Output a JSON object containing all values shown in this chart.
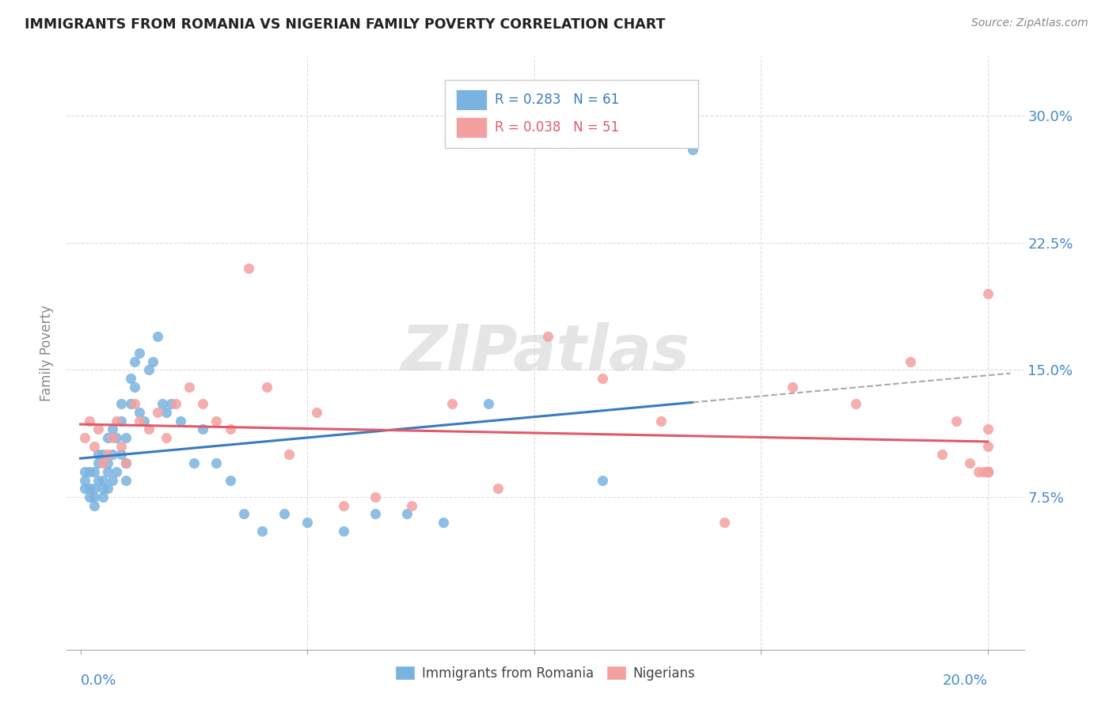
{
  "title": "IMMIGRANTS FROM ROMANIA VS NIGERIAN FAMILY POVERTY CORRELATION CHART",
  "source": "Source: ZipAtlas.com",
  "ylabel": "Family Poverty",
  "yticks": [
    0.075,
    0.15,
    0.225,
    0.3
  ],
  "ytick_labels": [
    "7.5%",
    "15.0%",
    "22.5%",
    "30.0%"
  ],
  "color_romania": "#7ab3e0",
  "color_nigeria": "#f4a0a0",
  "color_romania_line": "#3a7abf",
  "color_nigeria_line": "#e05a6a",
  "watermark": "ZIPatlas",
  "romania_x": [
    0.001,
    0.001,
    0.001,
    0.002,
    0.002,
    0.002,
    0.003,
    0.003,
    0.003,
    0.003,
    0.004,
    0.004,
    0.004,
    0.005,
    0.005,
    0.005,
    0.005,
    0.006,
    0.006,
    0.006,
    0.006,
    0.007,
    0.007,
    0.007,
    0.008,
    0.008,
    0.009,
    0.009,
    0.009,
    0.01,
    0.01,
    0.01,
    0.011,
    0.011,
    0.012,
    0.012,
    0.013,
    0.013,
    0.014,
    0.015,
    0.016,
    0.017,
    0.018,
    0.019,
    0.02,
    0.022,
    0.025,
    0.027,
    0.03,
    0.033,
    0.036,
    0.04,
    0.045,
    0.05,
    0.058,
    0.065,
    0.072,
    0.08,
    0.09,
    0.115,
    0.135
  ],
  "romania_y": [
    0.08,
    0.085,
    0.09,
    0.075,
    0.08,
    0.09,
    0.07,
    0.075,
    0.08,
    0.09,
    0.085,
    0.095,
    0.1,
    0.075,
    0.08,
    0.085,
    0.1,
    0.08,
    0.09,
    0.095,
    0.11,
    0.085,
    0.1,
    0.115,
    0.09,
    0.11,
    0.1,
    0.12,
    0.13,
    0.085,
    0.095,
    0.11,
    0.13,
    0.145,
    0.14,
    0.155,
    0.125,
    0.16,
    0.12,
    0.15,
    0.155,
    0.17,
    0.13,
    0.125,
    0.13,
    0.12,
    0.095,
    0.115,
    0.095,
    0.085,
    0.065,
    0.055,
    0.065,
    0.06,
    0.055,
    0.065,
    0.065,
    0.06,
    0.13,
    0.085,
    0.28
  ],
  "nigeria_x": [
    0.001,
    0.002,
    0.003,
    0.004,
    0.005,
    0.006,
    0.007,
    0.008,
    0.009,
    0.01,
    0.012,
    0.013,
    0.015,
    0.017,
    0.019,
    0.021,
    0.024,
    0.027,
    0.03,
    0.033,
    0.037,
    0.041,
    0.046,
    0.052,
    0.058,
    0.065,
    0.073,
    0.082,
    0.092,
    0.103,
    0.115,
    0.128,
    0.142,
    0.157,
    0.171,
    0.183,
    0.19,
    0.193,
    0.196,
    0.198,
    0.199,
    0.2,
    0.2,
    0.2,
    0.2,
    0.2,
    0.2,
    0.2,
    0.2,
    0.2,
    0.2
  ],
  "nigeria_y": [
    0.11,
    0.12,
    0.105,
    0.115,
    0.095,
    0.1,
    0.11,
    0.12,
    0.105,
    0.095,
    0.13,
    0.12,
    0.115,
    0.125,
    0.11,
    0.13,
    0.14,
    0.13,
    0.12,
    0.115,
    0.21,
    0.14,
    0.1,
    0.125,
    0.07,
    0.075,
    0.07,
    0.13,
    0.08,
    0.17,
    0.145,
    0.12,
    0.06,
    0.14,
    0.13,
    0.155,
    0.1,
    0.12,
    0.095,
    0.09,
    0.09,
    0.09,
    0.115,
    0.105,
    0.195,
    0.09,
    0.09,
    0.09,
    0.09,
    0.09,
    0.09
  ]
}
